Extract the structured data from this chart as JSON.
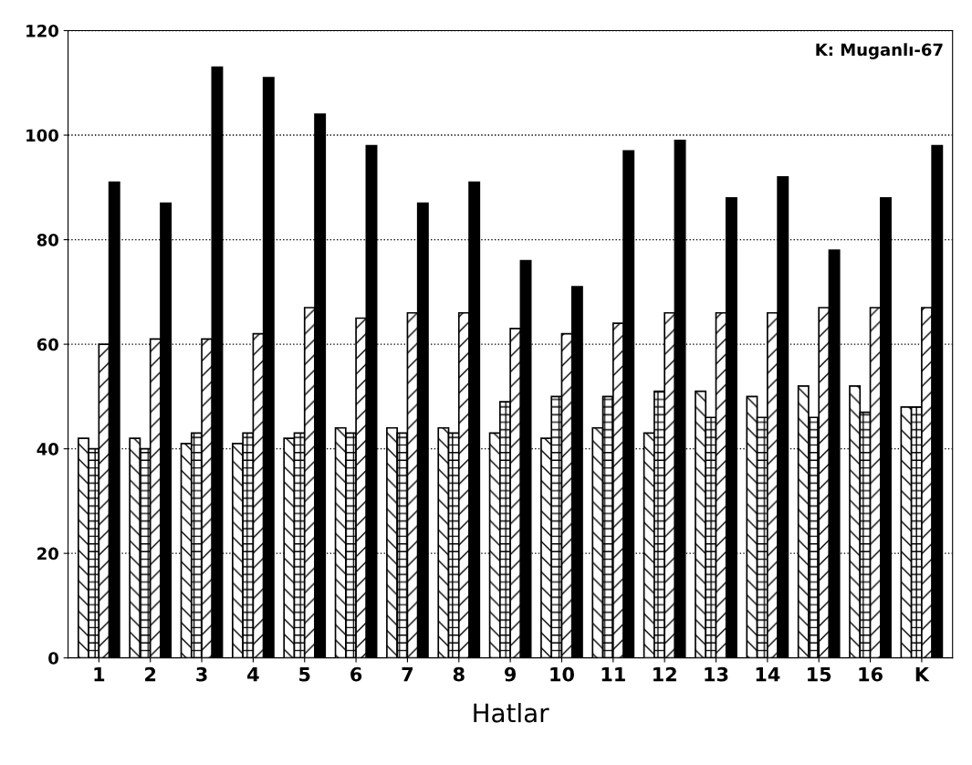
{
  "chart_data": {
    "type": "bar",
    "xlabel": "Hatlar",
    "annotations": [
      "K: Muganlı-67"
    ],
    "categories": [
      "1",
      "2",
      "3",
      "4",
      "5",
      "6",
      "7",
      "8",
      "9",
      "10",
      "11",
      "12",
      "13",
      "14",
      "15",
      "16",
      "K"
    ],
    "series": [
      {
        "color": "#000000",
        "values": [
          42,
          42,
          41,
          41,
          42,
          44,
          44,
          44,
          43,
          42,
          44,
          43,
          51,
          50,
          52,
          52,
          48
        ]
      },
      {
        "color": "#000000",
        "values": [
          40,
          40,
          43,
          43,
          43,
          43,
          43,
          43,
          49,
          50,
          50,
          51,
          46,
          46,
          46,
          47,
          48
        ]
      },
      {
        "color": "#000000",
        "values": [
          60,
          61,
          61,
          62,
          67,
          65,
          66,
          66,
          63,
          62,
          64,
          66,
          66,
          66,
          67,
          67,
          67
        ]
      },
      {
        "color": "#000000",
        "values": [
          91,
          87,
          113,
          111,
          104,
          98,
          87,
          91,
          76,
          71,
          97,
          99,
          88,
          92,
          78,
          88,
          98
        ]
      }
    ],
    "ylim": [
      0,
      120
    ],
    "yticks": [
      0,
      20,
      40,
      60,
      80,
      100,
      120
    ],
    "grid": "y"
  }
}
